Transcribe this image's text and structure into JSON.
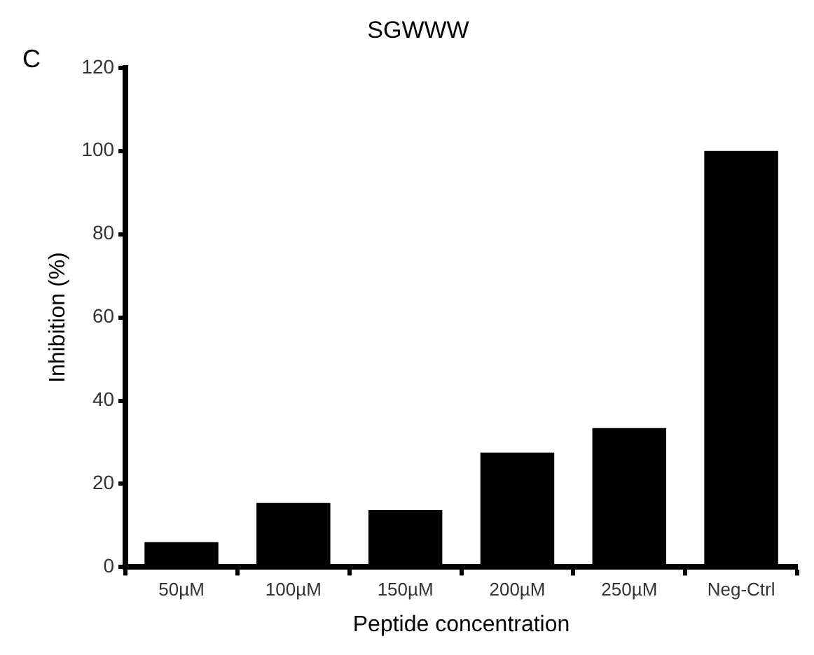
{
  "chart_data": {
    "type": "bar",
    "title": "SGWWW",
    "xlabel": "Peptide concentration",
    "ylabel": "Inhibition (%)",
    "annotations": [
      "C"
    ],
    "categories": [
      "50µM",
      "100µM",
      "150µM",
      "200µM",
      "250µM",
      "Neg-Ctrl"
    ],
    "values": [
      6,
      15.4,
      13.7,
      27.5,
      33.4,
      100
    ],
    "color": "#000000",
    "ylim": [
      0,
      120
    ],
    "yticks": [
      0,
      20,
      40,
      60,
      80,
      100,
      120
    ],
    "grid": false,
    "legend": false
  }
}
